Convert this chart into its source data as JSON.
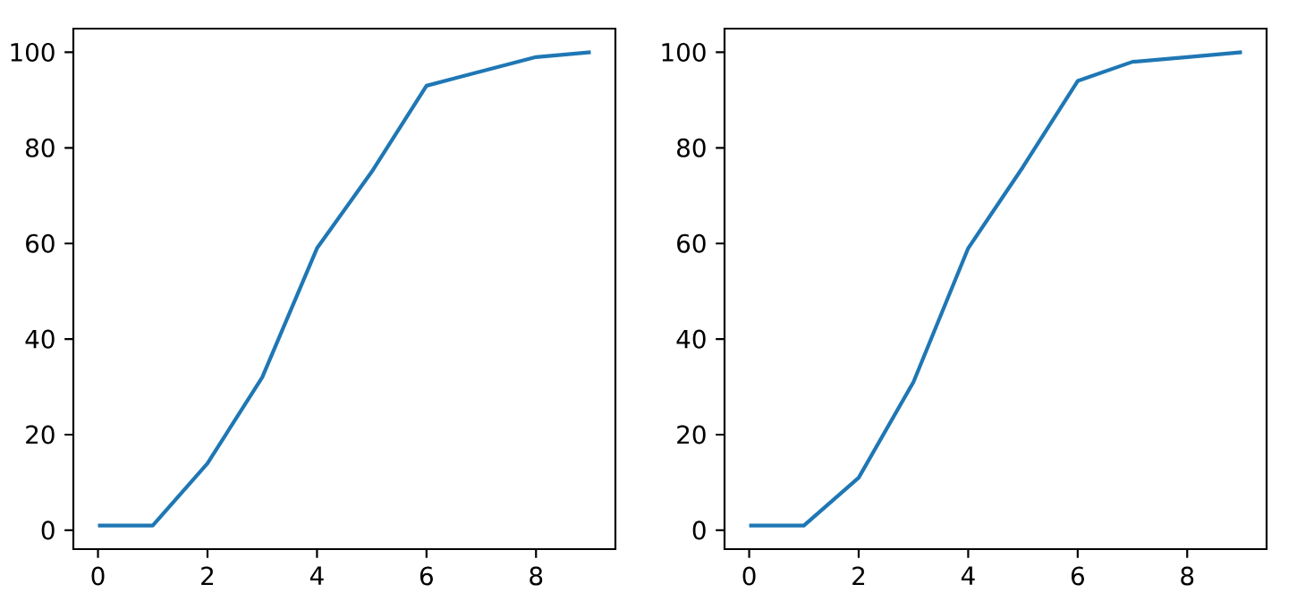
{
  "chart_data": [
    {
      "type": "line",
      "x": [
        0,
        1,
        2,
        3,
        4,
        5,
        6,
        7,
        8,
        9
      ],
      "values": [
        1,
        1,
        14,
        32,
        59,
        75,
        93,
        96,
        99,
        100
      ],
      "color": "#1f77b4",
      "xlim": [
        -0.45,
        9.45
      ],
      "ylim": [
        -3.95,
        104.95
      ],
      "xticks": [
        0,
        2,
        4,
        6,
        8
      ],
      "yticks": [
        0,
        20,
        40,
        60,
        80,
        100
      ]
    },
    {
      "type": "line",
      "x": [
        0,
        1,
        2,
        3,
        4,
        5,
        6,
        7,
        8,
        9
      ],
      "values": [
        1,
        1,
        11,
        31,
        59,
        76,
        94,
        98,
        99,
        100
      ],
      "color": "#1f77b4",
      "xlim": [
        -0.45,
        9.45
      ],
      "ylim": [
        -3.95,
        104.95
      ],
      "xticks": [
        0,
        2,
        4,
        6,
        8
      ],
      "yticks": [
        0,
        20,
        40,
        60,
        80,
        100
      ]
    }
  ]
}
